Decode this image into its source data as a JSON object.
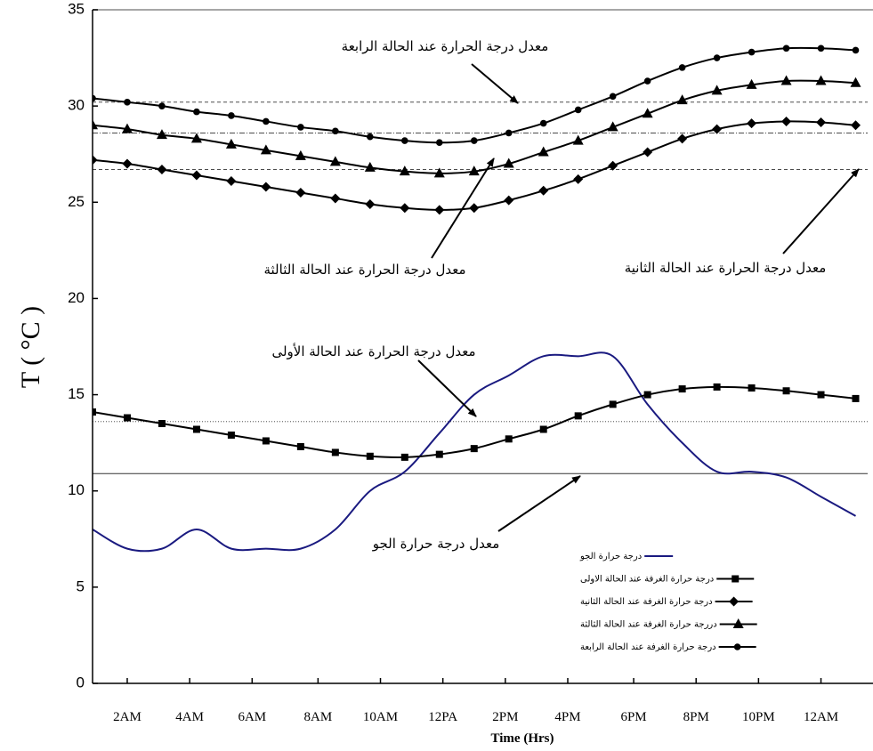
{
  "chart_data": {
    "type": "line",
    "xlabel": "Time  (Hrs)",
    "ylabel": "T ( °C )",
    "x": [
      0,
      1,
      2,
      3,
      4,
      5,
      6,
      7,
      8,
      9,
      10,
      11,
      12,
      13,
      14,
      15,
      16,
      17,
      18,
      19,
      20,
      21,
      22
    ],
    "xlim": [
      0,
      22.5
    ],
    "xticks": [
      {
        "value": 1,
        "label": "2AM"
      },
      {
        "value": 2.8,
        "label": "4AM"
      },
      {
        "value": 4.6,
        "label": "6AM"
      },
      {
        "value": 6.5,
        "label": "8AM"
      },
      {
        "value": 8.3,
        "label": "10AM"
      },
      {
        "value": 10.1,
        "label": "12PA"
      },
      {
        "value": 11.9,
        "label": "2PM"
      },
      {
        "value": 13.7,
        "label": "4PM"
      },
      {
        "value": 15.6,
        "label": "6PM"
      },
      {
        "value": 17.4,
        "label": "8PM"
      },
      {
        "value": 19.2,
        "label": "10PM"
      },
      {
        "value": 21.0,
        "label": "12AM"
      }
    ],
    "ylim": [
      0,
      35
    ],
    "yticks": [
      0,
      5,
      10,
      15,
      20,
      25,
      30,
      35
    ],
    "series": [
      {
        "name": "درجة حرارة الجو",
        "color": "#1a1a80",
        "marker": "none",
        "values": [
          8.0,
          7.0,
          7.0,
          8.0,
          7.0,
          7.0,
          7.0,
          8.0,
          10.0,
          11.0,
          13.0,
          15.0,
          16.0,
          17.0,
          17.0,
          17.0,
          14.5,
          12.5,
          11.0,
          11.0,
          10.7,
          9.7,
          8.7
        ]
      },
      {
        "name": "درجة حرارة الغرفة عند الحالة الاولى",
        "color": "#000000",
        "marker": "square",
        "values": [
          14.1,
          13.8,
          13.5,
          13.2,
          12.9,
          12.6,
          12.3,
          12.0,
          11.8,
          11.75,
          11.9,
          12.2,
          12.7,
          13.2,
          13.9,
          14.5,
          15.0,
          15.3,
          15.4,
          15.35,
          15.2,
          15.0,
          14.8
        ]
      },
      {
        "name": "درجة حرارة الغرفة عند الحالة الثانية",
        "color": "#000000",
        "marker": "diamond",
        "values": [
          27.2,
          27.0,
          26.7,
          26.4,
          26.1,
          25.8,
          25.5,
          25.2,
          24.9,
          24.7,
          24.6,
          24.7,
          25.1,
          25.6,
          26.2,
          26.9,
          27.6,
          28.3,
          28.8,
          29.1,
          29.2,
          29.15,
          29.0
        ]
      },
      {
        "name": "دررجة حرارة الغرفة عند الحالة الثالثة",
        "color": "#000000",
        "marker": "triangle",
        "values": [
          29.0,
          28.8,
          28.5,
          28.3,
          28.0,
          27.7,
          27.4,
          27.1,
          26.8,
          26.6,
          26.5,
          26.6,
          27.0,
          27.6,
          28.2,
          28.9,
          29.6,
          30.3,
          30.8,
          31.1,
          31.3,
          31.3,
          31.2
        ]
      },
      {
        "name": "درجة حرارة الغرفة عند الحالة الرابعة",
        "color": "#000000",
        "marker": "circle",
        "values": [
          30.4,
          30.2,
          30.0,
          29.7,
          29.5,
          29.2,
          28.9,
          28.7,
          28.4,
          28.2,
          28.1,
          28.2,
          28.6,
          29.1,
          29.8,
          30.5,
          31.3,
          32.0,
          32.5,
          32.8,
          33.0,
          33.0,
          32.9
        ]
      }
    ],
    "average_lines": [
      {
        "value": 10.9,
        "style": "solid"
      },
      {
        "value": 13.6,
        "style": "dotted"
      },
      {
        "value": 26.7,
        "style": "dashed"
      },
      {
        "value": 28.6,
        "style": "dashdot"
      },
      {
        "value": 30.2,
        "style": "dashed"
      }
    ],
    "annotations": [
      "معدل درجة الحرارة عند الحالة الرابعة",
      "معدل درجة الحرارة عند الحالة الثالثة",
      "معدل درجة الحرارة عند الحالة الثانية",
      "معدل درجة الحرارة عند الحالة الأولى",
      "معدل درجة حرارة الجو"
    ]
  }
}
